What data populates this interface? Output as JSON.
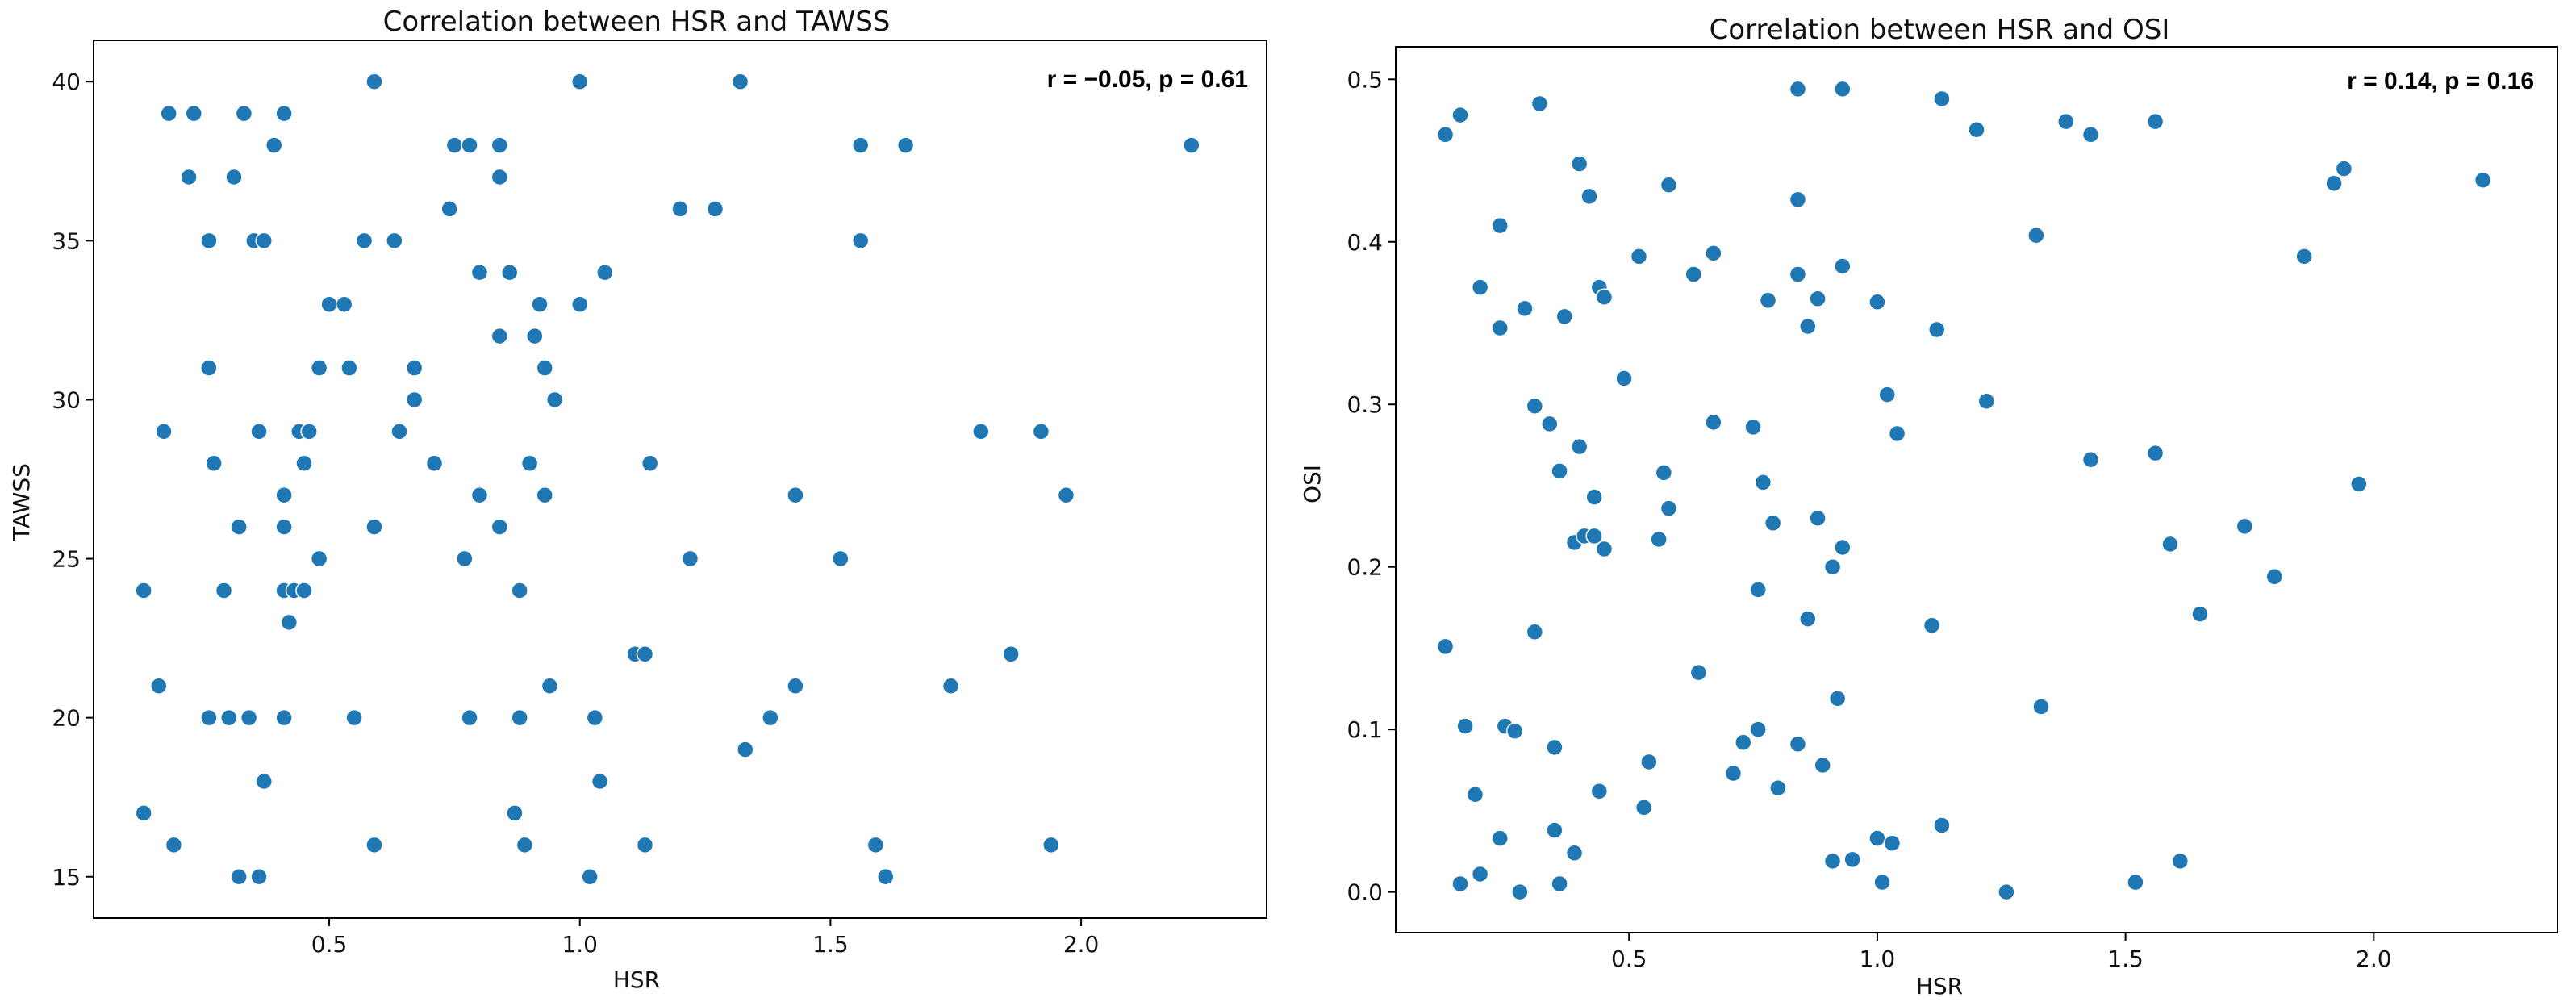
{
  "chart_data": [
    {
      "type": "scatter",
      "title": "Correlation between HSR and TAWSS",
      "xlabel": "HSR",
      "ylabel": "TAWSS",
      "annotation": "r = −0.05, p = 0.61",
      "legend": "none",
      "grid": false,
      "xlim": [
        0.03,
        2.37
      ],
      "ylim": [
        13.7,
        41.3
      ],
      "xticks": [
        0.5,
        1.0,
        1.5,
        2.0
      ],
      "xtick_labels": [
        "0.5",
        "1.0",
        "1.5",
        "2.0"
      ],
      "yticks": [
        15,
        20,
        25,
        30,
        35,
        40
      ],
      "ytick_labels": [
        "15",
        "20",
        "25",
        "30",
        "35",
        "40"
      ],
      "color": "#1f77b4",
      "points": [
        [
          0.13,
          24
        ],
        [
          0.13,
          17
        ],
        [
          0.16,
          21
        ],
        [
          0.17,
          29
        ],
        [
          0.18,
          39
        ],
        [
          0.19,
          16
        ],
        [
          0.22,
          37
        ],
        [
          0.23,
          39
        ],
        [
          0.26,
          31
        ],
        [
          0.26,
          35
        ],
        [
          0.26,
          20
        ],
        [
          0.27,
          28
        ],
        [
          0.29,
          24
        ],
        [
          0.3,
          20
        ],
        [
          0.31,
          37
        ],
        [
          0.32,
          26
        ],
        [
          0.32,
          15
        ],
        [
          0.33,
          39
        ],
        [
          0.34,
          20
        ],
        [
          0.35,
          35
        ],
        [
          0.36,
          15
        ],
        [
          0.36,
          29
        ],
        [
          0.37,
          35
        ],
        [
          0.37,
          18
        ],
        [
          0.39,
          38
        ],
        [
          0.41,
          39
        ],
        [
          0.41,
          27
        ],
        [
          0.41,
          26
        ],
        [
          0.41,
          20
        ],
        [
          0.41,
          24
        ],
        [
          0.42,
          23
        ],
        [
          0.43,
          24
        ],
        [
          0.44,
          29
        ],
        [
          0.45,
          28
        ],
        [
          0.45,
          24
        ],
        [
          0.46,
          29
        ],
        [
          0.48,
          25
        ],
        [
          0.48,
          31
        ],
        [
          0.5,
          33
        ],
        [
          0.53,
          33
        ],
        [
          0.54,
          31
        ],
        [
          0.55,
          20
        ],
        [
          0.57,
          35
        ],
        [
          0.59,
          16
        ],
        [
          0.59,
          26
        ],
        [
          0.59,
          40
        ],
        [
          0.63,
          35
        ],
        [
          0.64,
          29
        ],
        [
          0.67,
          31
        ],
        [
          0.67,
          30
        ],
        [
          0.71,
          28
        ],
        [
          0.74,
          36
        ],
        [
          0.75,
          38
        ],
        [
          0.77,
          25
        ],
        [
          0.78,
          38
        ],
        [
          0.78,
          20
        ],
        [
          0.8,
          34
        ],
        [
          0.8,
          27
        ],
        [
          0.84,
          38
        ],
        [
          0.84,
          37
        ],
        [
          0.84,
          32
        ],
        [
          0.84,
          26
        ],
        [
          0.86,
          34
        ],
        [
          0.87,
          17
        ],
        [
          0.88,
          20
        ],
        [
          0.88,
          24
        ],
        [
          0.89,
          16
        ],
        [
          0.9,
          28
        ],
        [
          0.91,
          32
        ],
        [
          0.92,
          33
        ],
        [
          0.93,
          31
        ],
        [
          0.93,
          27
        ],
        [
          0.94,
          21
        ],
        [
          0.95,
          30
        ],
        [
          1.0,
          40
        ],
        [
          1.0,
          33
        ],
        [
          1.02,
          15
        ],
        [
          1.03,
          20
        ],
        [
          1.04,
          18
        ],
        [
          1.05,
          34
        ],
        [
          1.11,
          22
        ],
        [
          1.13,
          22
        ],
        [
          1.13,
          16
        ],
        [
          1.14,
          28
        ],
        [
          1.2,
          36
        ],
        [
          1.22,
          25
        ],
        [
          1.27,
          36
        ],
        [
          1.32,
          40
        ],
        [
          1.33,
          19
        ],
        [
          1.38,
          20
        ],
        [
          1.43,
          27
        ],
        [
          1.43,
          21
        ],
        [
          1.52,
          25
        ],
        [
          1.56,
          38
        ],
        [
          1.56,
          35
        ],
        [
          1.59,
          16
        ],
        [
          1.61,
          15
        ],
        [
          1.65,
          38
        ],
        [
          1.74,
          21
        ],
        [
          1.8,
          29
        ],
        [
          1.86,
          22
        ],
        [
          1.92,
          29
        ],
        [
          1.94,
          16
        ],
        [
          1.97,
          27
        ],
        [
          2.22,
          38
        ]
      ]
    },
    {
      "type": "scatter",
      "title": "Correlation between HSR and OSI",
      "xlabel": "HSR",
      "ylabel": "OSI",
      "annotation": "r = 0.14, p = 0.16",
      "legend": "none",
      "grid": false,
      "xlim": [
        0.03,
        2.37
      ],
      "ylim": [
        -0.025,
        0.52
      ],
      "xticks": [
        0.5,
        1.0,
        1.5,
        2.0
      ],
      "xtick_labels": [
        "0.5",
        "1.0",
        "1.5",
        "2.0"
      ],
      "yticks": [
        0.0,
        0.1,
        0.2,
        0.3,
        0.4,
        0.5
      ],
      "ytick_labels": [
        "0.0",
        "0.1",
        "0.2",
        "0.3",
        "0.4",
        "0.5"
      ],
      "color": "#1f77b4",
      "points": [
        [
          0.13,
          0.466
        ],
        [
          0.13,
          0.151
        ],
        [
          0.16,
          0.478
        ],
        [
          0.16,
          0.005
        ],
        [
          0.17,
          0.102
        ],
        [
          0.19,
          0.06
        ],
        [
          0.2,
          0.372
        ],
        [
          0.2,
          0.011
        ],
        [
          0.24,
          0.41
        ],
        [
          0.24,
          0.347
        ],
        [
          0.24,
          0.033
        ],
        [
          0.25,
          0.102
        ],
        [
          0.27,
          0.099
        ],
        [
          0.28,
          0.0
        ],
        [
          0.29,
          0.359
        ],
        [
          0.31,
          0.299
        ],
        [
          0.31,
          0.16
        ],
        [
          0.32,
          0.485
        ],
        [
          0.34,
          0.288
        ],
        [
          0.35,
          0.089
        ],
        [
          0.35,
          0.038
        ],
        [
          0.36,
          0.259
        ],
        [
          0.36,
          0.005
        ],
        [
          0.37,
          0.354
        ],
        [
          0.39,
          0.024
        ],
        [
          0.39,
          0.215
        ],
        [
          0.4,
          0.448
        ],
        [
          0.4,
          0.274
        ],
        [
          0.41,
          0.219
        ],
        [
          0.42,
          0.428
        ],
        [
          0.43,
          0.243
        ],
        [
          0.43,
          0.219
        ],
        [
          0.44,
          0.372
        ],
        [
          0.44,
          0.062
        ],
        [
          0.45,
          0.366
        ],
        [
          0.45,
          0.211
        ],
        [
          0.49,
          0.316
        ],
        [
          0.52,
          0.391
        ],
        [
          0.53,
          0.052
        ],
        [
          0.54,
          0.08
        ],
        [
          0.56,
          0.217
        ],
        [
          0.57,
          0.258
        ],
        [
          0.58,
          0.435
        ],
        [
          0.58,
          0.236
        ],
        [
          0.63,
          0.38
        ],
        [
          0.64,
          0.135
        ],
        [
          0.67,
          0.289
        ],
        [
          0.67,
          0.393
        ],
        [
          0.71,
          0.073
        ],
        [
          0.73,
          0.092
        ],
        [
          0.75,
          0.286
        ],
        [
          0.76,
          0.186
        ],
        [
          0.76,
          0.1
        ],
        [
          0.77,
          0.252
        ],
        [
          0.78,
          0.364
        ],
        [
          0.79,
          0.227
        ],
        [
          0.8,
          0.064
        ],
        [
          0.84,
          0.494
        ],
        [
          0.84,
          0.426
        ],
        [
          0.84,
          0.38
        ],
        [
          0.84,
          0.091
        ],
        [
          0.86,
          0.348
        ],
        [
          0.86,
          0.168
        ],
        [
          0.88,
          0.365
        ],
        [
          0.88,
          0.23
        ],
        [
          0.89,
          0.078
        ],
        [
          0.91,
          0.019
        ],
        [
          0.91,
          0.2
        ],
        [
          0.92,
          0.119
        ],
        [
          0.93,
          0.494
        ],
        [
          0.93,
          0.385
        ],
        [
          0.93,
          0.212
        ],
        [
          0.95,
          0.02
        ],
        [
          1.0,
          0.363
        ],
        [
          1.0,
          0.033
        ],
        [
          1.01,
          0.006
        ],
        [
          1.02,
          0.306
        ],
        [
          1.03,
          0.03
        ],
        [
          1.04,
          0.282
        ],
        [
          1.11,
          0.164
        ],
        [
          1.12,
          0.346
        ],
        [
          1.13,
          0.488
        ],
        [
          1.13,
          0.041
        ],
        [
          1.2,
          0.469
        ],
        [
          1.22,
          0.302
        ],
        [
          1.26,
          0.0
        ],
        [
          1.32,
          0.404
        ],
        [
          1.33,
          0.114
        ],
        [
          1.38,
          0.474
        ],
        [
          1.43,
          0.466
        ],
        [
          1.43,
          0.266
        ],
        [
          1.52,
          0.006
        ],
        [
          1.56,
          0.474
        ],
        [
          1.56,
          0.27
        ],
        [
          1.59,
          0.214
        ],
        [
          1.61,
          0.019
        ],
        [
          1.65,
          0.171
        ],
        [
          1.74,
          0.225
        ],
        [
          1.8,
          0.194
        ],
        [
          1.86,
          0.391
        ],
        [
          1.92,
          0.436
        ],
        [
          1.94,
          0.445
        ],
        [
          1.97,
          0.251
        ],
        [
          2.22,
          0.438
        ]
      ]
    }
  ]
}
